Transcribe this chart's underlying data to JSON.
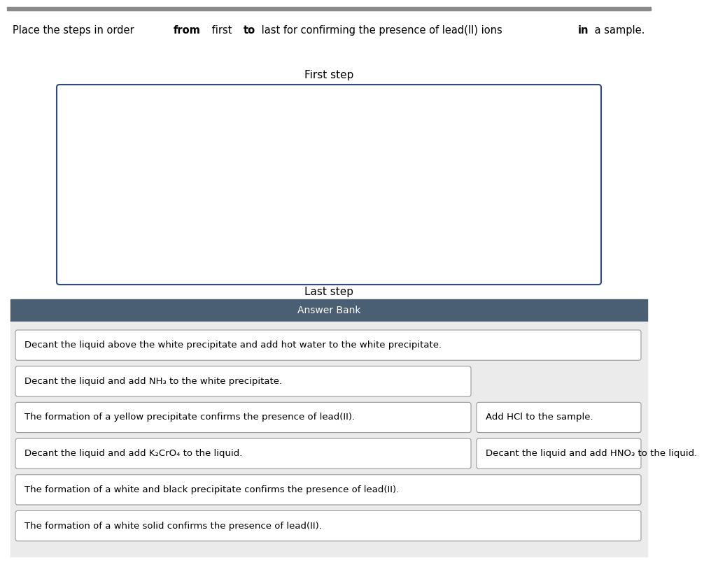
{
  "title_parts": [
    {
      "text": "Place the steps in order ",
      "bold": false
    },
    {
      "text": "from",
      "bold": true
    },
    {
      "text": " first ",
      "bold": false
    },
    {
      "text": "to",
      "bold": true
    },
    {
      "text": " last for confirming the presence of lead(II) ions ",
      "bold": false
    },
    {
      "text": "in",
      "bold": true
    },
    {
      "text": " a sample.",
      "bold": false
    }
  ],
  "first_step_label": "First step",
  "last_step_label": "Last step",
  "answer_bank_label": "Answer Bank",
  "answer_bank_bg": "#4a5f72",
  "answer_bank_text_color": "#ffffff",
  "main_bg": "#ffffff",
  "answer_area_bg": "#ebebeb",
  "drop_zone_border": "#2e4a7a",
  "top_bar_color": "#8a8a8a",
  "items": [
    {
      "text": "Decant the liquid above the white precipitate and add hot water to the white precipitate.",
      "row": 0,
      "col": 0,
      "colspan": 2
    },
    {
      "text": "Decant the liquid and add NH₃ to the white precipitate.",
      "row": 1,
      "col": 0,
      "colspan": 1
    },
    {
      "text": "The formation of a yellow precipitate confirms the presence of lead(II).",
      "row": 2,
      "col": 0,
      "colspan": 1
    },
    {
      "text": "Add HCl to the sample.",
      "row": 2,
      "col": 1,
      "colspan": 1
    },
    {
      "text": "Decant the liquid and add K₂CrO₄ to the liquid.",
      "row": 3,
      "col": 0,
      "colspan": 1
    },
    {
      "text": "Decant the liquid and add HNO₃ to the liquid.",
      "row": 3,
      "col": 1,
      "colspan": 1
    },
    {
      "text": "The formation of a white and black precipitate confirms the presence of lead(II).",
      "row": 4,
      "col": 0,
      "colspan": 2
    },
    {
      "text": "The formation of a white solid confirms the presence of lead(II).",
      "row": 5,
      "col": 0,
      "colspan": 2
    }
  ]
}
